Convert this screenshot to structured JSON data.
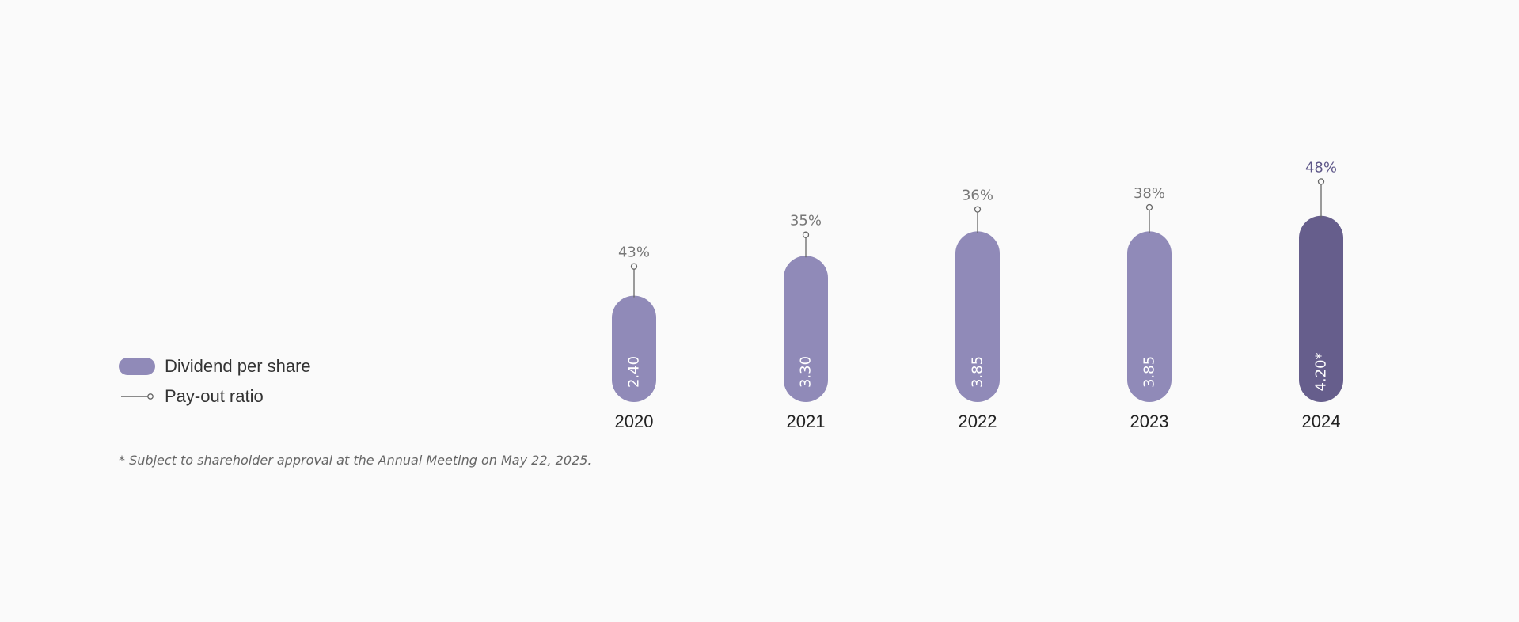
{
  "colors": {
    "bar": "#908ab8",
    "bar_highlight": "#665e8c",
    "line": "#666666",
    "ratio_label": "#777777",
    "ratio_label_highlight": "#5d5688",
    "year_label": "#222222",
    "background": "#fafafa"
  },
  "legend": {
    "dividend_label": "Dividend per share",
    "payout_label": "Pay-out ratio"
  },
  "footnote": "* Subject to shareholder approval at the Annual Meeting on May 22, 2025.",
  "chart_data": {
    "type": "bar",
    "categories": [
      "2020",
      "2021",
      "2022",
      "2023",
      "2024"
    ],
    "series": [
      {
        "name": "Dividend per share",
        "values": [
          2.4,
          3.3,
          3.85,
          3.85,
          4.2
        ],
        "labels": [
          "2.40",
          "3.30",
          "3.85",
          "3.85",
          "4.20*"
        ]
      },
      {
        "name": "Pay-out ratio",
        "values": [
          43,
          35,
          36,
          38,
          48
        ],
        "labels": [
          "43%",
          "35%",
          "36%",
          "38%",
          "48%"
        ]
      }
    ],
    "highlight_category": "2024",
    "legend_position": "left"
  }
}
